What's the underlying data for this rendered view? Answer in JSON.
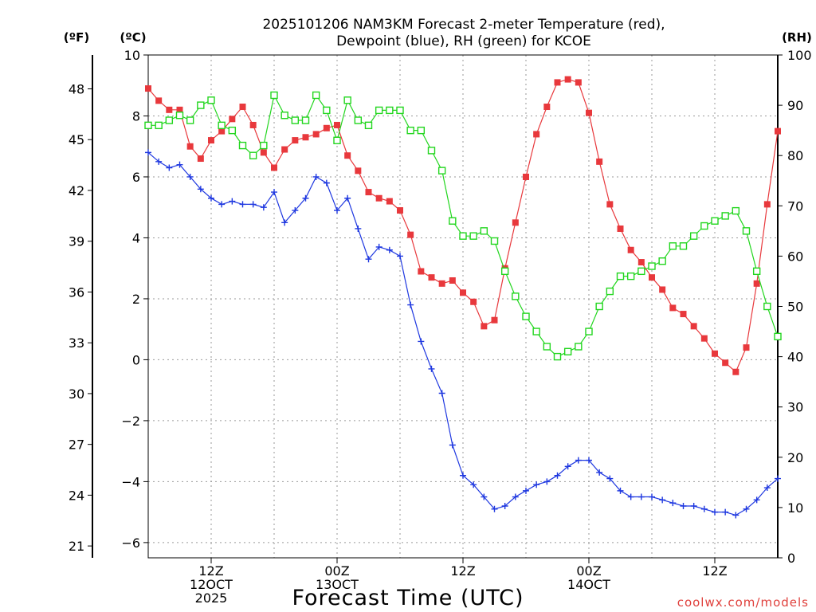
{
  "chart_data": {
    "type": "line",
    "title": [
      "2025101206 NAM3KM Forecast 2-meter Temperature (red),",
      "Dewpoint (blue), RH (green) for KCOE"
    ],
    "xlabel": "Forecast Time (UTC)",
    "credit": "coolwx.com/models",
    "units": {
      "f": "(ºF)",
      "c": "(ºC)",
      "rh": "(RH)"
    },
    "celsius_axis": {
      "range": [
        -6.5,
        10
      ],
      "ticks": [
        10,
        8,
        6,
        4,
        2,
        0,
        -2,
        -4,
        -6
      ],
      "tick_labels": [
        "10",
        "8",
        "6",
        "4",
        "2",
        "0",
        "−2",
        "−4",
        "−6"
      ]
    },
    "fahrenheit_axis": {
      "ticks": [
        48,
        45,
        42,
        39,
        36,
        33,
        30,
        27,
        24,
        21
      ],
      "tick_labels": [
        "48",
        "45",
        "42",
        "39",
        "36",
        "33",
        "30",
        "27",
        "24",
        "21"
      ]
    },
    "rh_axis": {
      "range": [
        0,
        100
      ],
      "ticks": [
        100,
        90,
        80,
        70,
        60,
        50,
        40,
        30,
        20,
        10,
        0
      ],
      "tick_labels": [
        "100",
        "90",
        "80",
        "70",
        "60",
        "50",
        "40",
        "30",
        "20",
        "10",
        "0"
      ]
    },
    "x_axis": {
      "range_hours": [
        0,
        60
      ],
      "ticks": [
        {
          "hour": 6,
          "lines": [
            "12Z",
            "12OCT",
            "2025"
          ]
        },
        {
          "hour": 18,
          "lines": [
            "00Z",
            "13OCT"
          ]
        },
        {
          "hour": 30,
          "lines": [
            "12Z"
          ]
        },
        {
          "hour": 42,
          "lines": [
            "00Z",
            "14OCT"
          ]
        },
        {
          "hour": 54,
          "lines": [
            "12Z"
          ]
        }
      ]
    },
    "x_hours": [
      0,
      1,
      2,
      3,
      4,
      5,
      6,
      7,
      8,
      9,
      10,
      11,
      12,
      13,
      14,
      15,
      16,
      17,
      18,
      19,
      20,
      21,
      22,
      23,
      24,
      25,
      26,
      27,
      28,
      29,
      30,
      31,
      32,
      33,
      34,
      35,
      36,
      37,
      38,
      39,
      40,
      41,
      42,
      43,
      44,
      45,
      46,
      47,
      48,
      49,
      50,
      51,
      52,
      53,
      54,
      55,
      56,
      57,
      58,
      59,
      60
    ],
    "series": [
      {
        "name": "Temperature",
        "unit": "C",
        "color": "#e8383c",
        "marker": "filled-square",
        "values": [
          8.9,
          8.5,
          8.2,
          8.2,
          7.0,
          6.6,
          7.2,
          7.5,
          7.9,
          8.3,
          7.7,
          6.8,
          6.3,
          6.9,
          7.2,
          7.3,
          7.4,
          7.6,
          7.7,
          6.7,
          6.2,
          5.5,
          5.3,
          5.2,
          4.9,
          4.1,
          2.9,
          2.7,
          2.5,
          2.6,
          2.2,
          1.9,
          1.1,
          1.3,
          3.0,
          4.5,
          6.0,
          7.4,
          8.3,
          9.1,
          9.2,
          9.1,
          8.1,
          6.5,
          5.1,
          4.3,
          3.6,
          3.2,
          2.7,
          2.3,
          1.7,
          1.5,
          1.1,
          0.7,
          0.2,
          -0.1,
          -0.4,
          0.4,
          2.5,
          5.1,
          7.5
        ]
      },
      {
        "name": "Dewpoint",
        "unit": "C",
        "color": "#1f38e0",
        "marker": "plus",
        "values": [
          6.8,
          6.5,
          6.3,
          6.4,
          6.0,
          5.6,
          5.3,
          5.1,
          5.2,
          5.1,
          5.1,
          5.0,
          5.5,
          4.5,
          4.9,
          5.3,
          6.0,
          5.8,
          4.9,
          5.3,
          4.3,
          3.3,
          3.7,
          3.6,
          3.4,
          1.8,
          0.6,
          -0.3,
          -1.1,
          -2.8,
          -3.8,
          -4.1,
          -4.5,
          -4.9,
          -4.8,
          -4.5,
          -4.3,
          -4.1,
          -4.0,
          -3.8,
          -3.5,
          -3.3,
          -3.3,
          -3.7,
          -3.9,
          -4.3,
          -4.5,
          -4.5,
          -4.5,
          -4.6,
          -4.7,
          -4.8,
          -4.8,
          -4.9,
          -5.0,
          -5.0,
          -5.1,
          -4.9,
          -4.6,
          -4.2,
          -3.9
        ]
      },
      {
        "name": "RH",
        "unit": "%",
        "color": "#22d61e",
        "marker": "open-square",
        "values": [
          86,
          86,
          87,
          88,
          87,
          90,
          91,
          86,
          85,
          82,
          80,
          82,
          92,
          88,
          87,
          87,
          92,
          89,
          83,
          91,
          87,
          86,
          89,
          89,
          89,
          85,
          85,
          81,
          77,
          67,
          64,
          64,
          65,
          63,
          57,
          52,
          48,
          45,
          42,
          40,
          41,
          42,
          45,
          50,
          53,
          56,
          56,
          57,
          58,
          59,
          62,
          62,
          64,
          66,
          67,
          68,
          69,
          65,
          57,
          50,
          44
        ]
      }
    ]
  }
}
